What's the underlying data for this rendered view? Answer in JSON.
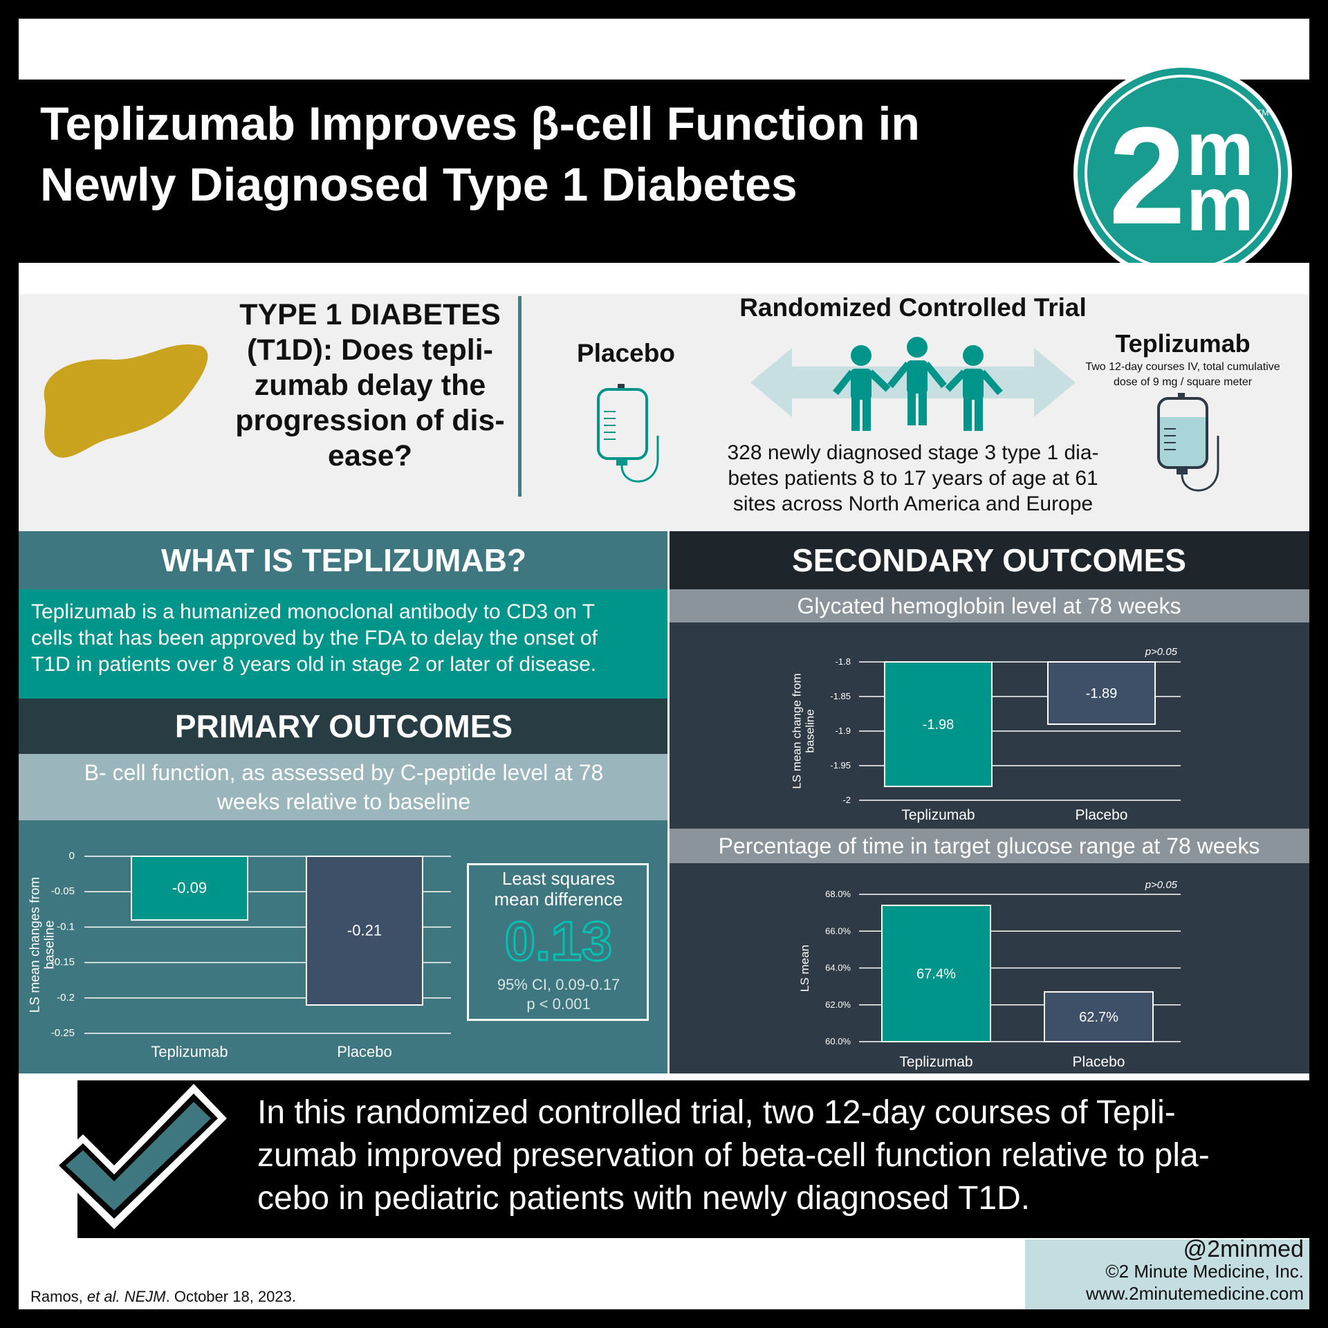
{
  "title": "Teplizumab Improves β-cell Function in\nNewly Diagnosed Type 1 Diabetes",
  "logo": {
    "text_main": "2",
    "text_sup": "m",
    "text_sub": "m",
    "tm": "TM",
    "color": "#179c8f"
  },
  "intro": {
    "question": "TYPE 1 DIABETES (T1D): Does tepli-zumab delay the progression of dis-ease?",
    "rct_title": "Randomized Controlled Trial",
    "placebo_label": "Placebo",
    "teplizumab_label": "Teplizumab",
    "teplizumab_dose": "Two 12-day courses IV, total cumulative\ndose of 9 mg / square meter",
    "description": "328 newly diagnosed stage 3  type 1 dia-\nbetes patients 8 to 17 years of age at 61\nsites across North America and Europe"
  },
  "what": {
    "heading": "WHAT IS TEPLIZUMAB?",
    "body": "Teplizumab is a humanized monoclonal antibody to CD3 on T\ncells that has been approved by the FDA to delay the onset of\nT1D in patients over 8 years old in stage 2 or later of disease."
  },
  "primary": {
    "heading": "PRIMARY OUTCOMES",
    "subheading": "B- cell function, as assessed by C-peptide level at 78\nweeks relative to baseline",
    "lsd_label": "Least squares\nmean difference",
    "lsd_value": "0.13",
    "lsd_ci": "95% CI, 0.09-0.17\np < 0.001"
  },
  "secondary": {
    "heading": "SECONDARY OUTCOMES",
    "sub1": "Glycated hemoglobin level at 78 weeks",
    "sub2": "Percentage of time in target glucose range at 78 weeks"
  },
  "conclusion": "In this randomized controlled trial, two 12-day courses of Tepli-\nzumab improved preservation of beta-cell function relative to pla-\ncebo in pediatric patients with newly diagnosed T1D.",
  "reference": {
    "authors": "Ramos, ",
    "etal": "et al. NEJM",
    "date": ". October 18, 2023."
  },
  "brand": {
    "handle": "@2minmed",
    "copyright": "©2 Minute Medicine, Inc.",
    "url": "www.2minutemedicine.com"
  },
  "colors": {
    "teplizumab": "#00958a",
    "placebo": "#3d5068",
    "panel_teal": "#3f7780",
    "panel_dark": "#2e3a45",
    "organ": "#c9a21e",
    "arrow": "#c8dfe2"
  },
  "chart_data": [
    {
      "type": "bar",
      "categories": [
        "Teplizumab",
        "Placebo"
      ],
      "values": [
        -0.09,
        -0.21
      ],
      "value_labels": [
        "-0.09",
        "-0.21"
      ],
      "ylabel": "LS mean changes from baseline",
      "ylim": [
        -0.25,
        0
      ],
      "yticks": [
        0,
        -0.05,
        -0.1,
        -0.15,
        -0.2,
        -0.25
      ],
      "ytick_labels": [
        "0",
        "-0.05",
        "-0.1",
        "-0.15",
        "-0.2",
        "-0.25"
      ],
      "grid": true
    },
    {
      "type": "bar",
      "categories": [
        "Teplizumab",
        "Placebo"
      ],
      "values": [
        -1.98,
        -1.89
      ],
      "value_labels": [
        "-1.98",
        "-1.89"
      ],
      "ylabel": "LS mean change from baseline",
      "ylim": [
        -2,
        -1.8
      ],
      "yticks": [
        -1.8,
        -1.85,
        -1.9,
        -1.95,
        -2
      ],
      "ytick_labels": [
        "-1.8",
        "-1.85",
        "-1.9",
        "-1.95",
        "-2"
      ],
      "annotation": "p>0.05",
      "grid": true
    },
    {
      "type": "bar",
      "categories": [
        "Teplizumab",
        "Placebo"
      ],
      "values": [
        67.4,
        62.7
      ],
      "value_labels": [
        "67.4%",
        "62.7%"
      ],
      "ylabel": "LS mean",
      "ylim": [
        60,
        68
      ],
      "yticks": [
        68,
        66,
        64,
        62,
        60
      ],
      "ytick_labels": [
        "68.0%",
        "66.0%",
        "64.0%",
        "62.0%",
        "60.0%"
      ],
      "annotation": "p>0.05",
      "grid": true
    }
  ]
}
